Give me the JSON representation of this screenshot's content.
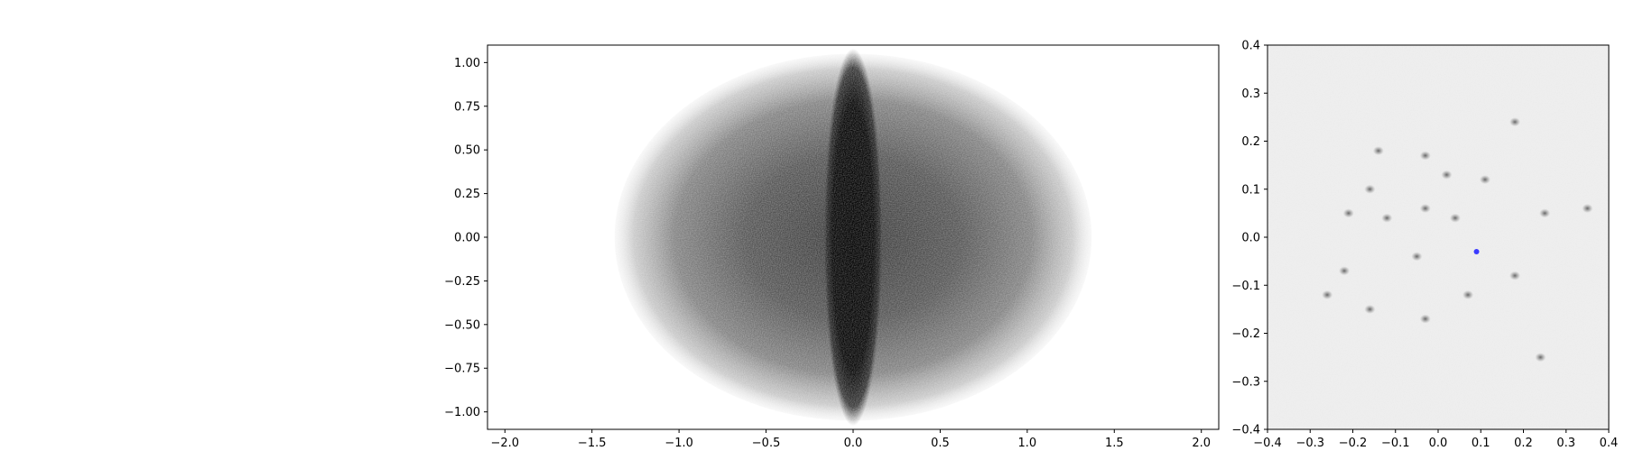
{
  "chart_data": [
    {
      "type": "scatter",
      "title": "",
      "xlabel": "",
      "ylabel": "",
      "xlim": [
        -2.1,
        2.1
      ],
      "ylim": [
        -1.1,
        1.1
      ],
      "xticks": [
        -2.0,
        -1.5,
        -1.0,
        -0.5,
        0.0,
        0.5,
        1.0,
        1.5,
        2.0
      ],
      "yticks": [
        -1.0,
        -0.75,
        -0.5,
        -0.25,
        0.0,
        0.25,
        0.5,
        0.75,
        1.0
      ],
      "xtick_labels": [
        "−2.0",
        "−1.5",
        "−1.0",
        "−0.5",
        "0.0",
        "0.5",
        "1.0",
        "1.5",
        "2.0"
      ],
      "ytick_labels": [
        "−1.00",
        "−0.75",
        "−0.50",
        "−0.25",
        "0.00",
        "0.25",
        "0.50",
        "0.75",
        "1.00"
      ],
      "grid": false,
      "series": [
        {
          "distribution": "uniform ellipse",
          "center": [
            0.0,
            0.0
          ],
          "semi_axes": [
            1.37,
            1.05
          ],
          "color": "#000000"
        },
        {
          "distribution": "dense central spindle",
          "center": [
            0.0,
            0.0
          ],
          "semi_axes": [
            0.17,
            1.08
          ],
          "color": "#000000"
        }
      ]
    },
    {
      "type": "scatter",
      "title": "",
      "xlabel": "",
      "ylabel": "",
      "xlim": [
        -0.4,
        0.4
      ],
      "ylim": [
        -0.4,
        0.4
      ],
      "xticks": [
        -0.4,
        -0.3,
        -0.2,
        -0.1,
        0.0,
        0.1,
        0.2,
        0.3,
        0.4
      ],
      "yticks": [
        -0.4,
        -0.3,
        -0.2,
        -0.1,
        0.0,
        0.1,
        0.2,
        0.3,
        0.4
      ],
      "xtick_labels": [
        "−0.4",
        "−0.3",
        "−0.2",
        "−0.1",
        "0.0",
        "0.1",
        "0.2",
        "0.3",
        "0.4"
      ],
      "ytick_labels": [
        "−0.4",
        "−0.3",
        "−0.2",
        "−0.1",
        "0.0",
        "0.1",
        "0.2",
        "0.3",
        "0.4"
      ],
      "grid": false,
      "background_density": "light uniform gray",
      "clusters": [
        [
          0.18,
          0.24
        ],
        [
          0.11,
          0.12
        ],
        [
          -0.03,
          0.17
        ],
        [
          -0.14,
          0.18
        ],
        [
          -0.16,
          0.1
        ],
        [
          -0.12,
          0.04
        ],
        [
          -0.03,
          0.06
        ],
        [
          0.04,
          0.04
        ],
        [
          -0.05,
          -0.04
        ],
        [
          -0.22,
          -0.07
        ],
        [
          -0.16,
          -0.15
        ],
        [
          -0.03,
          -0.17
        ],
        [
          0.07,
          -0.12
        ],
        [
          0.18,
          -0.08
        ],
        [
          0.25,
          0.05
        ],
        [
          0.35,
          0.06
        ],
        [
          -0.21,
          0.05
        ],
        [
          0.24,
          -0.25
        ],
        [
          -0.26,
          -0.12
        ],
        [
          0.02,
          0.13
        ]
      ],
      "highlight_points": [
        {
          "x": 0.09,
          "y": -0.03,
          "color": "#3b3bff"
        }
      ]
    }
  ]
}
